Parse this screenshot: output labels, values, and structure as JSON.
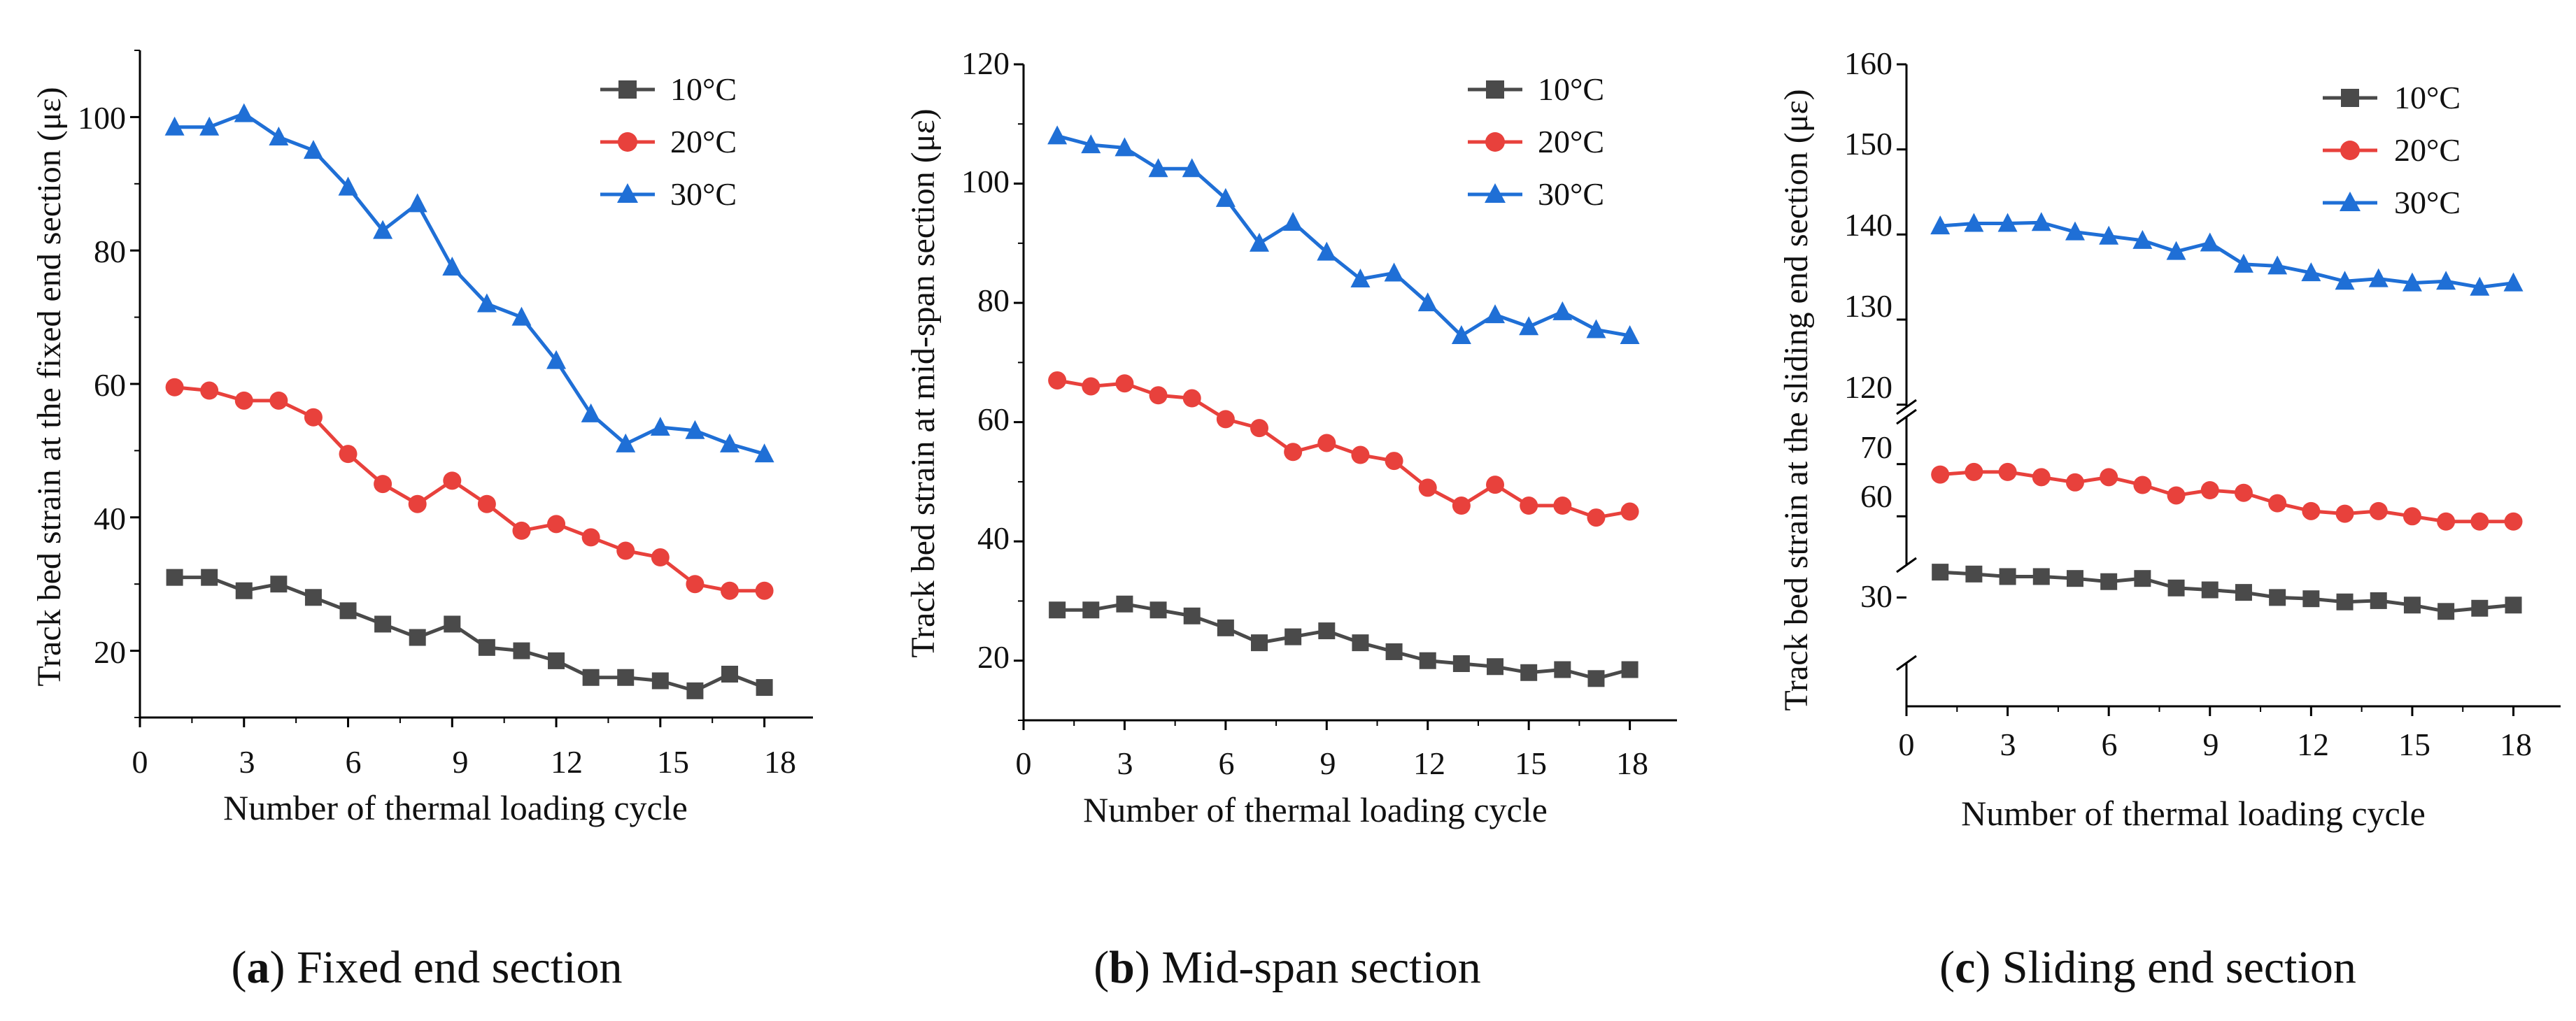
{
  "figure": {
    "colors": {
      "series_10": "#4a4a4a",
      "series_20": "#e8413c",
      "series_30": "#1f6fd6",
      "axis": "#000000",
      "text": "#111111"
    }
  },
  "chart_data": [
    {
      "id": "a",
      "type": "line",
      "caption_prefix": "a",
      "caption_text": "Fixed end section",
      "xlabel": "Number of thermal loading cycle",
      "ylabel": "Track bed strain at the fixed end section (με)",
      "x": [
        1,
        2,
        3,
        4,
        5,
        6,
        7,
        8,
        9,
        10,
        11,
        12,
        13,
        14,
        15,
        16,
        17,
        18
      ],
      "xlim": [
        0,
        19.4
      ],
      "xticks": [
        0,
        3,
        6,
        9,
        12,
        15,
        18
      ],
      "xtick_labels": [
        "0",
        "3",
        "6",
        "9",
        "12",
        "15",
        "18"
      ],
      "ylim": [
        10,
        110
      ],
      "yticks": [
        20,
        40,
        60,
        80,
        100
      ],
      "ytick_labels": [
        "20",
        "40",
        "60",
        "80",
        "100"
      ],
      "legend_position": "top-right",
      "series": [
        {
          "name": "10°C",
          "marker": "square",
          "color": "#4a4a4a",
          "values": [
            31,
            31,
            29,
            30,
            28,
            26,
            24,
            22,
            24,
            20.5,
            20,
            18.5,
            16,
            16,
            15.5,
            14,
            16.5,
            14.5
          ]
        },
        {
          "name": "20°C",
          "marker": "circle",
          "color": "#e8413c",
          "values": [
            59.5,
            59,
            57.5,
            57.5,
            55,
            49.5,
            45,
            42,
            45.5,
            42,
            38,
            39,
            37,
            35,
            34,
            30,
            29,
            29
          ]
        },
        {
          "name": "30°C",
          "marker": "triangle",
          "color": "#1f6fd6",
          "values": [
            98.5,
            98.5,
            100.5,
            97,
            95,
            89.5,
            83,
            87,
            77.5,
            72,
            70,
            63.5,
            55.5,
            51,
            53.5,
            53,
            51,
            49.5
          ]
        }
      ]
    },
    {
      "id": "b",
      "type": "line",
      "caption_prefix": "b",
      "caption_text": "Mid-span section",
      "xlabel": "Number of thermal loading cycle",
      "ylabel": "Track bed strain at mid-span section (με)",
      "x": [
        1,
        2,
        3,
        4,
        5,
        6,
        7,
        8,
        9,
        10,
        11,
        12,
        13,
        14,
        15,
        16,
        17,
        18
      ],
      "xlim": [
        0,
        19.4
      ],
      "xticks": [
        0,
        3,
        6,
        9,
        12,
        15,
        18
      ],
      "xtick_labels": [
        "0",
        "3",
        "6",
        "9",
        "12",
        "15",
        "18"
      ],
      "ylim": [
        10,
        120
      ],
      "yticks": [
        20,
        40,
        60,
        80,
        100,
        120
      ],
      "ytick_labels": [
        "20",
        "40",
        "60",
        "80",
        "100",
        "120"
      ],
      "legend_position": "top-right",
      "series": [
        {
          "name": "10°C",
          "marker": "square",
          "color": "#4a4a4a",
          "values": [
            28.5,
            28.5,
            29.5,
            28.5,
            27.5,
            25.5,
            23,
            24,
            25,
            23,
            21.5,
            20,
            19.5,
            19,
            18,
            18.5,
            17,
            18.5
          ]
        },
        {
          "name": "20°C",
          "marker": "circle",
          "color": "#e8413c",
          "values": [
            67,
            66,
            66.5,
            64.5,
            64,
            60.5,
            59,
            55,
            56.5,
            54.5,
            53.5,
            49,
            46,
            49.5,
            46,
            46,
            44,
            45
          ]
        },
        {
          "name": "30°C",
          "marker": "triangle",
          "color": "#1f6fd6",
          "values": [
            108,
            106.5,
            106,
            102.5,
            102.5,
            97.5,
            90,
            93.5,
            88.5,
            84,
            85,
            80,
            74.5,
            78,
            76,
            78.5,
            75.5,
            74.5
          ]
        }
      ]
    },
    {
      "id": "c",
      "type": "line",
      "caption_prefix": "c",
      "caption_text": "Sliding end section",
      "xlabel": "Number of thermal loading cycle",
      "ylabel": "Track bed strain at the sliding end section (με)",
      "x": [
        1,
        2,
        3,
        4,
        5,
        6,
        7,
        8,
        9,
        10,
        11,
        12,
        13,
        14,
        15,
        16,
        17,
        18
      ],
      "xlim": [
        0,
        19.4
      ],
      "xticks": [
        0,
        3,
        6,
        9,
        12,
        15,
        18
      ],
      "xtick_labels": [
        "0",
        "3",
        "6",
        "9",
        "12",
        "15",
        "18"
      ],
      "broken_y_axis": true,
      "y_segments": [
        {
          "range": [
            20,
            36
          ],
          "ticks": [
            30
          ],
          "tick_labels": [
            "30"
          ]
        },
        {
          "range": [
            52,
            78
          ],
          "ticks": [
            60,
            70
          ],
          "tick_labels": [
            "60",
            "70"
          ]
        },
        {
          "range": [
            118,
            160
          ],
          "ticks": [
            120,
            130,
            140,
            150,
            160
          ],
          "tick_labels": [
            "120",
            "130",
            "140",
            "150",
            "160"
          ]
        }
      ],
      "legend_position": "top-right",
      "series": [
        {
          "name": "10°C",
          "marker": "square",
          "color": "#4a4a4a",
          "values": [
            34,
            33.7,
            33.3,
            33.3,
            33,
            32.5,
            33,
            31.5,
            31.2,
            30.8,
            30,
            29.8,
            29.3,
            29.5,
            28.8,
            27.8,
            28.3,
            28.8
          ]
        },
        {
          "name": "20°C",
          "marker": "circle",
          "color": "#e8413c",
          "values": [
            68,
            68.5,
            68.5,
            67.5,
            66.5,
            67.5,
            66,
            64,
            65,
            64.5,
            62.5,
            61,
            60.5,
            61,
            60,
            59,
            59,
            59
          ]
        },
        {
          "name": "30°C",
          "marker": "triangle",
          "color": "#1f6fd6",
          "values": [
            141,
            141.3,
            141.3,
            141.4,
            140.3,
            139.8,
            139.3,
            138,
            139,
            136.5,
            136.3,
            135.5,
            134.5,
            134.8,
            134.3,
            134.5,
            133.8,
            134.3
          ]
        }
      ]
    }
  ]
}
